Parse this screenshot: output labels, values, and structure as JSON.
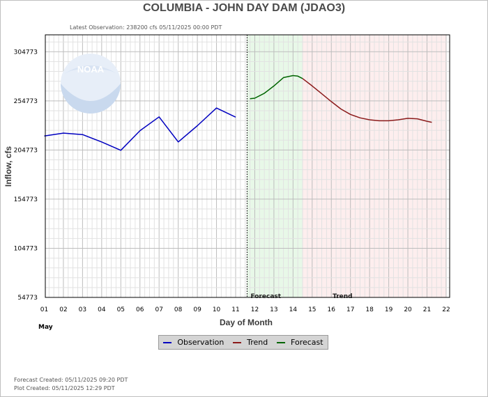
{
  "title": "COLUMBIA - JOHN DAY DAM  (JDAO3)",
  "latest_observation": "Latest Observation: 238200 cfs 05/11/2025 00:00 PDT",
  "footer": {
    "forecast_created": "Forecast Created: 05/11/2025 09:20 PDT",
    "plot_created": "Plot Created: 05/11/2025 12:29 PDT"
  },
  "legend": {
    "observation": "Observation",
    "trend": "Trend",
    "forecast": "Forecast"
  },
  "colors": {
    "observation": "#0000c0",
    "trend": "#8b1a1a",
    "forecast": "#006400",
    "forecast_zone": "#e8f8e8",
    "trend_zone": "#fdeeee"
  },
  "chart_data": {
    "type": "line",
    "title": "COLUMBIA - JOHN DAY DAM  (JDAO3)",
    "xlabel": "Day of Month",
    "ylabel": "Inflow, cfs",
    "month_label": "May",
    "xlim": [
      1,
      22
    ],
    "ylim": [
      54773,
      322000
    ],
    "x_ticks": [
      1,
      2,
      3,
      4,
      5,
      6,
      7,
      8,
      9,
      10,
      11,
      12,
      13,
      14,
      15,
      16,
      17,
      18,
      19,
      20,
      21,
      22
    ],
    "x_tick_labels": [
      "01",
      "02",
      "03",
      "04",
      "05",
      "06",
      "07",
      "08",
      "09",
      "10",
      "11",
      "12",
      "13",
      "14",
      "15",
      "16",
      "17",
      "18",
      "19",
      "20",
      "21",
      "22"
    ],
    "y_ticks": [
      54773,
      104773,
      154773,
      204773,
      254773,
      304773
    ],
    "y_tick_labels": [
      "54773",
      "104773",
      "154773",
      "204773",
      "254773",
      "304773"
    ],
    "grid": true,
    "observation_end": 11.6,
    "forecast_zone": [
      11.6,
      14.5
    ],
    "trend_zone": [
      14.5,
      22
    ],
    "zone_labels": {
      "forecast": "Forecast",
      "trend": "Trend"
    },
    "series": [
      {
        "name": "Observation",
        "x": [
          1,
          2,
          3,
          4,
          5,
          6,
          7,
          8,
          9,
          10,
          11
        ],
        "y": [
          219000,
          222000,
          220500,
          213000,
          204500,
          224500,
          238500,
          213000,
          229500,
          247500,
          238200
        ]
      },
      {
        "name": "Forecast",
        "x": [
          11.75,
          12,
          12.5,
          13,
          13.5,
          14,
          14.25,
          14.5
        ],
        "y": [
          257000,
          257500,
          262500,
          270000,
          278500,
          280500,
          280000,
          277500
        ]
      },
      {
        "name": "Trend",
        "x": [
          14.5,
          15,
          15.5,
          16,
          16.5,
          17,
          17.5,
          18,
          18.5,
          19,
          19.5,
          20,
          20.5,
          21,
          21.25
        ],
        "y": [
          277500,
          270000,
          262000,
          254000,
          246500,
          241000,
          237500,
          235500,
          234500,
          234500,
          235500,
          237000,
          236500,
          234000,
          233000
        ]
      }
    ]
  }
}
